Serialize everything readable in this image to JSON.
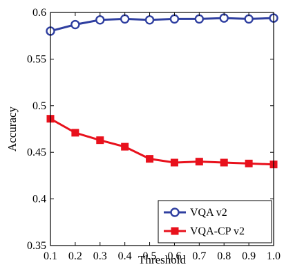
{
  "chart_data": {
    "type": "line",
    "xlabel": "Threshold",
    "ylabel": "Accuracy",
    "x": [
      0.1,
      0.2,
      0.3,
      0.4,
      0.5,
      0.6,
      0.7,
      0.8,
      0.9,
      1.0
    ],
    "xlim": [
      0.1,
      1.0
    ],
    "ylim": [
      0.35,
      0.6
    ],
    "xticks": [
      "0.1",
      "0.2",
      "0.3",
      "0.4",
      "0.5",
      "0.6",
      "0.7",
      "0.8",
      "0.9",
      "1.0"
    ],
    "yticks": [
      "0.35",
      "0.4",
      "0.45",
      "0.5",
      "0.55",
      "0.6"
    ],
    "grid": false,
    "legend_position": "bottom-right",
    "series": [
      {
        "name": "VQA v2",
        "color": "#2f3fa0",
        "marker": "circle",
        "values": [
          0.58,
          0.587,
          0.592,
          0.593,
          0.592,
          0.593,
          0.593,
          0.594,
          0.593,
          0.594
        ]
      },
      {
        "name": "VQA-CP v2",
        "color": "#e8111c",
        "marker": "square",
        "values": [
          0.486,
          0.471,
          0.463,
          0.456,
          0.443,
          0.439,
          0.44,
          0.439,
          0.438,
          0.437
        ]
      }
    ]
  }
}
